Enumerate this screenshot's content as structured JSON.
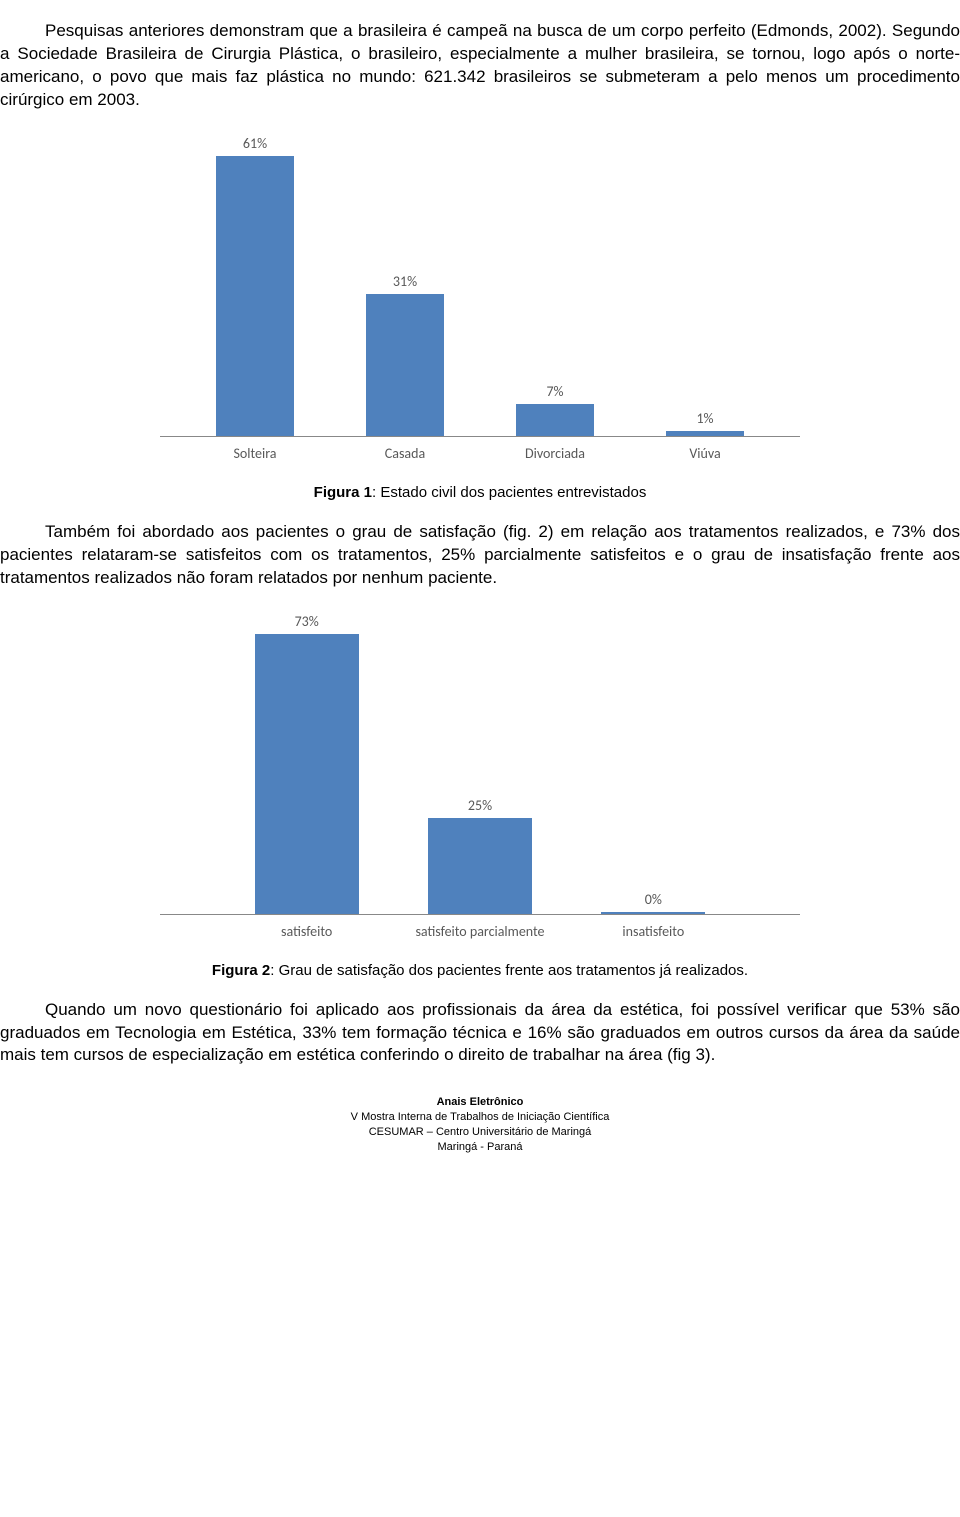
{
  "para1": "Pesquisas anteriores demonstram que a brasileira é campeã na busca de um corpo perfeito (Edmonds, 2002). Segundo a Sociedade Brasileira de Cirurgia Plástica, o brasileiro, especialmente a mulher brasileira, se tornou, logo após o norte-americano, o povo que mais faz plástica no mundo: 621.342 brasileiros se submeteram a pelo menos um procedimento cirúrgico em 2003.",
  "chart1": {
    "type": "bar",
    "bar_color": "#4f81bd",
    "background_color": "#ffffff",
    "value_color": "#585858",
    "label_color": "#585858",
    "max_value": 61,
    "bars": [
      {
        "label": "Solteira",
        "value": 61,
        "display": "61%"
      },
      {
        "label": "Casada",
        "value": 31,
        "display": "31%"
      },
      {
        "label": "Divorciada",
        "value": 7,
        "display": "7%"
      },
      {
        "label": "Viúva",
        "value": 1,
        "display": "1%"
      }
    ]
  },
  "caption1_bold": "Figura 1",
  "caption1_rest": ": Estado civil dos pacientes entrevistados",
  "para2": "Também foi abordado aos pacientes o grau de satisfação (fig. 2) em relação aos tratamentos realizados, e 73% dos pacientes relataram-se satisfeitos com os tratamentos, 25% parcialmente satisfeitos e o grau de insatisfação frente aos tratamentos realizados não foram relatados por nenhum paciente.",
  "chart2": {
    "type": "bar",
    "bar_color": "#4f81bd",
    "background_color": "#ffffff",
    "value_color": "#585858",
    "label_color": "#585858",
    "max_value": 73,
    "bars": [
      {
        "label": "satisfeito",
        "value": 73,
        "display": "73%"
      },
      {
        "label": "satisfeito parcialmente",
        "value": 25,
        "display": "25%"
      },
      {
        "label": "insatisfeito",
        "value": 0,
        "display": "0%"
      }
    ]
  },
  "caption2_bold": "Figura 2",
  "caption2_rest": ": Grau de satisfação dos pacientes frente aos tratamentos já realizados.",
  "para3": "Quando um novo questionário foi aplicado aos profissionais da área da estética, foi possível verificar que 53% são graduados em Tecnologia em Estética,  33% tem formação técnica e 16% são graduados em outros cursos da área da saúde mais tem cursos de especialização em estética conferindo o direito de trabalhar na área (fig 3).",
  "footer": {
    "line1": "Anais Eletrônico",
    "line2": "V Mostra Interna de Trabalhos de Iniciação Científica",
    "line3": "CESUMAR – Centro Universitário de Maringá",
    "line4": "Maringá - Paraná"
  }
}
